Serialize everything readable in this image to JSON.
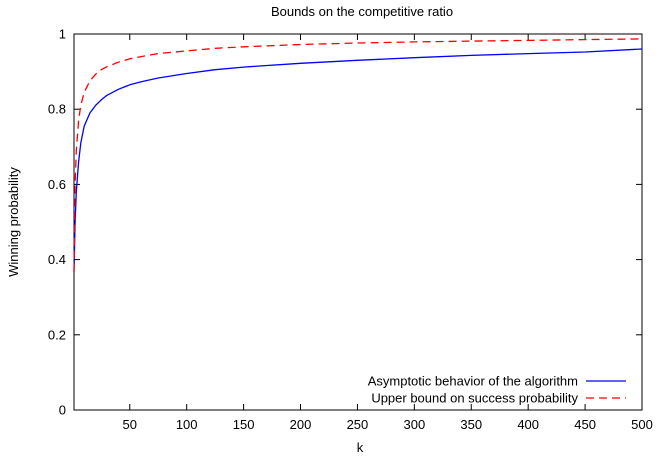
{
  "chart_data": {
    "type": "line",
    "title": "Bounds on the competitive ratio",
    "xlabel": "k",
    "ylabel": "Winning probability",
    "xlim": [
      1,
      500
    ],
    "ylim": [
      0,
      1
    ],
    "xticks": [
      50,
      100,
      150,
      200,
      250,
      300,
      350,
      400,
      450,
      500
    ],
    "yticks": [
      0,
      0.2,
      0.4,
      0.6,
      0.8,
      1
    ],
    "ytick_labels": [
      "0",
      "0.2",
      "0.4",
      "0.6",
      "0.8",
      "1"
    ],
    "grid": false,
    "legend_position": "bottom-right",
    "series": [
      {
        "name": "Asymptotic behavior of the algorithm",
        "color": "#0000ff",
        "dash": "solid",
        "x": [
          1,
          2,
          3,
          5,
          7,
          10,
          15,
          20,
          25,
          30,
          40,
          50,
          60,
          75,
          100,
          125,
          150,
          200,
          250,
          300,
          350,
          400,
          450,
          500
        ],
        "y": [
          0.368,
          0.5,
          0.58,
          0.66,
          0.71,
          0.755,
          0.79,
          0.81,
          0.825,
          0.837,
          0.853,
          0.865,
          0.873,
          0.883,
          0.895,
          0.905,
          0.912,
          0.922,
          0.93,
          0.937,
          0.943,
          0.948,
          0.952,
          0.96
        ]
      },
      {
        "name": "Upper bound on success probability",
        "color": "#ff0000",
        "dash": "dashed",
        "x": [
          1,
          2,
          3,
          5,
          7,
          10,
          15,
          20,
          25,
          30,
          40,
          50,
          60,
          75,
          100,
          125,
          150,
          200,
          250,
          300,
          350,
          400,
          450,
          500
        ],
        "y": [
          0.368,
          0.6,
          0.69,
          0.77,
          0.81,
          0.845,
          0.875,
          0.893,
          0.905,
          0.913,
          0.925,
          0.934,
          0.94,
          0.948,
          0.955,
          0.962,
          0.966,
          0.972,
          0.976,
          0.979,
          0.981,
          0.983,
          0.985,
          0.987
        ]
      }
    ]
  }
}
